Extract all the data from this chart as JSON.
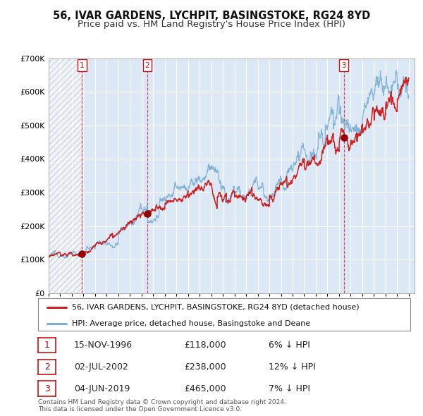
{
  "title": "56, IVAR GARDENS, LYCHPIT, BASINGSTOKE, RG24 8YD",
  "subtitle": "Price paid vs. HM Land Registry's House Price Index (HPI)",
  "ylim": [
    0,
    700000
  ],
  "xlim_start": 1994.0,
  "xlim_end": 2025.5,
  "yticks": [
    0,
    100000,
    200000,
    300000,
    400000,
    500000,
    600000,
    700000
  ],
  "ytick_labels": [
    "£0",
    "£100K",
    "£200K",
    "£300K",
    "£400K",
    "£500K",
    "£600K",
    "£700K"
  ],
  "background_color": "#ffffff",
  "plot_bg_color": "#dce8f5",
  "grid_color": "#ffffff",
  "hpi_color": "#7aadd4",
  "price_color": "#cc2222",
  "sale_marker_color": "#990000",
  "vline_color": "#dd3333",
  "legend_label_price": "56, IVAR GARDENS, LYCHPIT, BASINGSTOKE, RG24 8YD (detached house)",
  "legend_label_hpi": "HPI: Average price, detached house, Basingstoke and Deane",
  "sales": [
    {
      "num": 1,
      "date_label": "15-NOV-1996",
      "year": 1996.88,
      "price": 118000,
      "pct": "6%",
      "dir": "↓"
    },
    {
      "num": 2,
      "date_label": "02-JUL-2002",
      "year": 2002.5,
      "price": 238000,
      "pct": "12%",
      "dir": "↓"
    },
    {
      "num": 3,
      "date_label": "04-JUN-2019",
      "year": 2019.42,
      "price": 465000,
      "pct": "7%",
      "dir": "↓"
    }
  ],
  "footer": "Contains HM Land Registry data © Crown copyright and database right 2024.\nThis data is licensed under the Open Government Licence v3.0."
}
